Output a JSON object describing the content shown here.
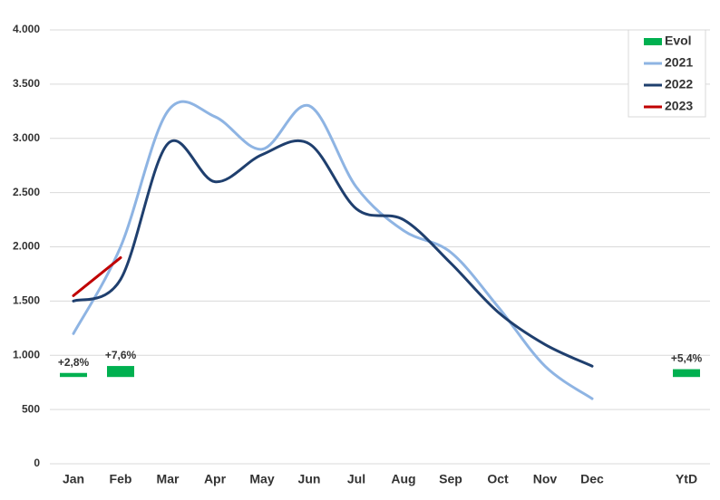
{
  "chart_data": {
    "type": "line",
    "categories": [
      "Jan",
      "Feb",
      "Mar",
      "Apr",
      "May",
      "Jun",
      "Jul",
      "Aug",
      "Sep",
      "Oct",
      "Nov",
      "Dec",
      null,
      "YtD"
    ],
    "ylim": [
      0,
      4000
    ],
    "yticks": [
      0,
      500,
      {
        "value": 1000,
        "label": "1.000"
      },
      {
        "value": 1500,
        "label": "1.500"
      },
      {
        "value": 2000,
        "label": "2.000"
      },
      {
        "value": 2500,
        "label": "2.500"
      },
      {
        "value": 3000,
        "label": "3.000"
      },
      {
        "value": 3500,
        "label": "3.500"
      },
      {
        "value": 4000,
        "label": "4.000"
      }
    ],
    "y2lim": [
      -60,
      240
    ],
    "grid": true,
    "legend": "upper right",
    "series": [
      {
        "name": "Evol",
        "type": "bar",
        "axis": "y2",
        "color": "#00b050",
        "values": [
          2.8,
          7.6,
          null,
          null,
          null,
          null,
          null,
          null,
          null,
          null,
          null,
          null,
          null,
          5.4
        ],
        "value_labels": [
          "+2,8%",
          "+7,6%",
          null,
          null,
          null,
          null,
          null,
          null,
          null,
          null,
          null,
          null,
          null,
          "+5,4%"
        ]
      },
      {
        "name": "2021",
        "type": "line",
        "color": "#8eb4e3",
        "values": [
          1200,
          2000,
          3250,
          3200,
          2900,
          3300,
          2550,
          2150,
          1950,
          1450,
          900,
          600,
          null,
          null
        ]
      },
      {
        "name": "2022",
        "type": "line",
        "color": "#1f3f6e",
        "values": [
          1500,
          1700,
          2950,
          2600,
          2850,
          2950,
          2350,
          2250,
          1850,
          1400,
          1100,
          900,
          null,
          null
        ]
      },
      {
        "name": "2023",
        "type": "line",
        "color": "#c00000",
        "values": [
          1550,
          1900,
          null,
          null,
          null,
          null,
          null,
          null,
          null,
          null,
          null,
          null,
          null,
          null
        ]
      }
    ]
  }
}
